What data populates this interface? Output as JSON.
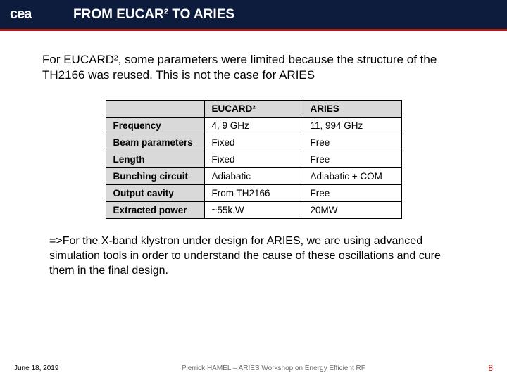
{
  "header": {
    "logo": "cea",
    "title": "FROM EUCAR² TO ARIES",
    "bg_color": "#0d1b3d",
    "underline_color": "#b01818"
  },
  "intro_text": "For EUCARD², some parameters were limited because the structure of the TH2166 was reused. This is not the case for ARIES",
  "table": {
    "header_bg": "#d9d9d9",
    "border_color": "#000000",
    "columns": [
      "",
      "EUCARD²",
      "ARIES"
    ],
    "rows": [
      [
        "Frequency",
        "4, 9 GHz",
        "11, 994 GHz"
      ],
      [
        "Beam parameters",
        "Fixed",
        "Free"
      ],
      [
        "Length",
        "Fixed",
        "Free"
      ],
      [
        "Bunching circuit",
        "Adiabatic",
        "Adiabatic + COM"
      ],
      [
        "Output cavity",
        "From TH2166",
        "Free"
      ],
      [
        "Extracted power",
        "~55k.W",
        "20MW"
      ]
    ]
  },
  "outro_text": "=>For the X-band klystron under design for ARIES, we are using advanced simulation tools in order to understand the cause of these oscillations and cure them in the final design.",
  "footer": {
    "date": "June 18, 2019",
    "center": "Pierrick HAMEL – ARIES Workshop on Energy Efficient RF",
    "page": "8",
    "page_color": "#b01818"
  }
}
